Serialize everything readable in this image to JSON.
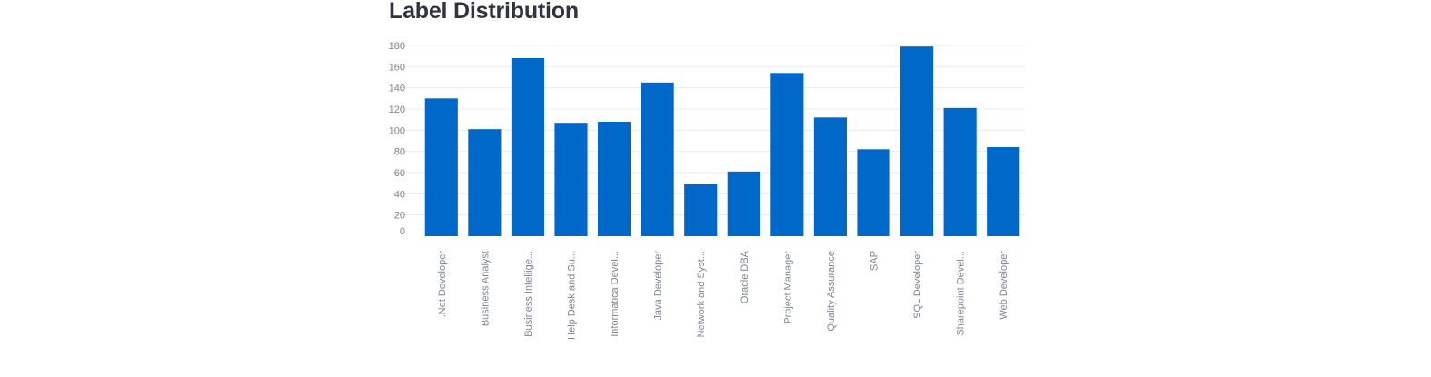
{
  "page": {
    "title": "Label Distribution"
  },
  "chart_data": {
    "type": "bar",
    "title": "Label Distribution",
    "xlabel": "",
    "ylabel": "",
    "ylim": [
      0,
      180
    ],
    "yticks": [
      0,
      20,
      40,
      60,
      80,
      100,
      120,
      140,
      160,
      180
    ],
    "grid": true,
    "bar_color": "#0068c9",
    "categories": [
      ".Net Developer",
      "Business Analyst",
      "Business Intellige...",
      "Help Desk and Su...",
      "Informatica Devel...",
      "Java Developer",
      "Network and Syst...",
      "Oracle DBA",
      "Project Manager",
      "Quality Assurance",
      "SAP",
      "SQL Developer",
      "Sharepoint Devel...",
      "Web Developer"
    ],
    "values": [
      130,
      101,
      168,
      107,
      108,
      145,
      49,
      61,
      154,
      112,
      82,
      179,
      121,
      84
    ]
  }
}
